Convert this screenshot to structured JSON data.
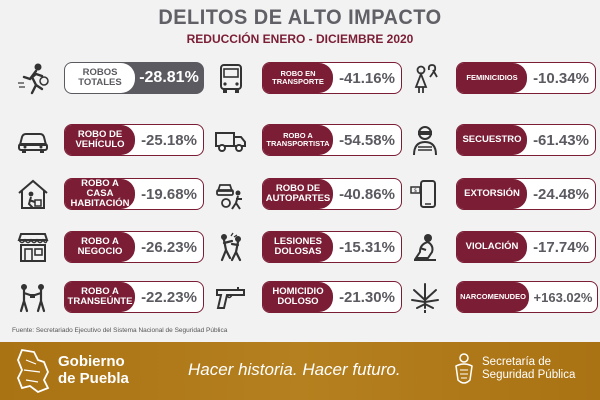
{
  "header": {
    "title": "DELITOS DE ALTO IMPACTO",
    "subtitle": "REDUCCIÓN ENERO - DICIEMBRE 2020"
  },
  "colors": {
    "maroon": "#7a1d35",
    "gray": "#5a5a60",
    "gold": "#b07a1e"
  },
  "stats": [
    {
      "label": "ROBOS TOTALES",
      "value": "-28.81%",
      "icon": "running-thief-icon"
    },
    {
      "label": "ROBO EN TRANSPORTE",
      "value": "-41.16%",
      "icon": "bus-icon"
    },
    {
      "label": "FEMINICIDIOS",
      "value": "-10.34%",
      "icon": "woman-ribbon-icon"
    },
    {
      "label": "ROBO DE VEHÍCULO",
      "value": "-25.18%",
      "icon": "car-icon"
    },
    {
      "label": "ROBO A TRANSPORTISTA",
      "value": "-54.58%",
      "icon": "truck-icon"
    },
    {
      "label": "SECUESTRO",
      "value": "-61.43%",
      "icon": "hostage-icon"
    },
    {
      "label": "ROBO A CASA HABITACIÓN",
      "value": "-19.68%",
      "icon": "house-thief-icon"
    },
    {
      "label": "ROBO DE AUTOPARTES",
      "value": "-40.86%",
      "icon": "autoparts-thief-icon"
    },
    {
      "label": "EXTORSIÓN",
      "value": "-24.48%",
      "icon": "phone-money-icon"
    },
    {
      "label": "ROBO A NEGOCIO",
      "value": "-26.23%",
      "icon": "storefront-icon"
    },
    {
      "label": "LESIONES DOLOSAS",
      "value": "-15.31%",
      "icon": "fight-icon"
    },
    {
      "label": "VIOLACIÓN",
      "value": "-17.74%",
      "icon": "kneeling-woman-icon"
    },
    {
      "label": "ROBO A TRANSEÚNTE",
      "value": "-22.23%",
      "icon": "pedestrian-robbery-icon"
    },
    {
      "label": "HOMICIDIO DOLOSO",
      "value": "-21.30%",
      "icon": "gun-icon"
    },
    {
      "label": "NARCOMENUDEO",
      "value": "+163.02%",
      "icon": "cannabis-leaf-icon"
    }
  ],
  "source": "Fuente: Secretariado Ejecutivo del Sistema Nacional de Seguridad Pública",
  "footer": {
    "gov_line1": "Gobierno",
    "gov_line2": "de Puebla",
    "slogan": "Hacer historia. Hacer futuro.",
    "sec_line1": "Secretaría de",
    "sec_line2": "Seguridad Pública"
  }
}
